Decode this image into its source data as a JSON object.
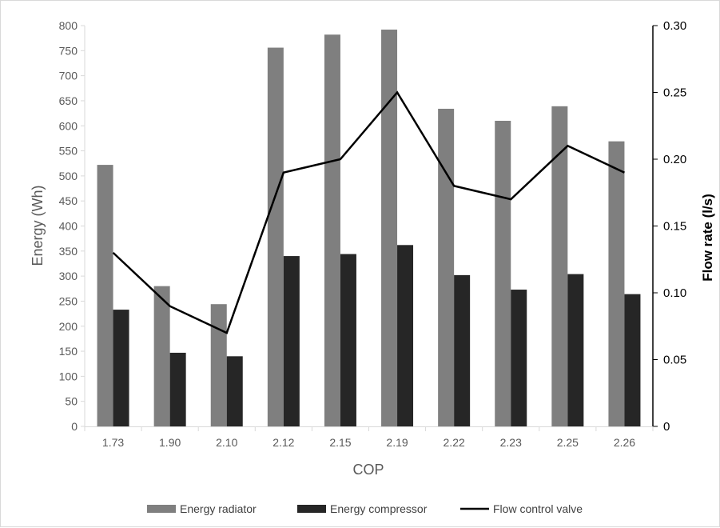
{
  "chart_data": {
    "type": "bar",
    "categories": [
      "1.73",
      "1.90",
      "2.10",
      "2.12",
      "2.15",
      "2.19",
      "2.22",
      "2.23",
      "2.25",
      "2.26"
    ],
    "series": [
      {
        "name": "Energy radiator",
        "type": "bar",
        "axis": "left",
        "color": "#7f7f7f",
        "values": [
          522,
          280,
          244,
          756,
          782,
          792,
          634,
          610,
          639,
          569
        ]
      },
      {
        "name": "Energy compressor",
        "type": "bar",
        "axis": "left",
        "color": "#262626",
        "values": [
          233,
          147,
          140,
          340,
          344,
          362,
          302,
          273,
          304,
          264
        ]
      },
      {
        "name": "Flow control valve",
        "type": "line",
        "axis": "right",
        "color": "#000000",
        "values": [
          0.13,
          0.09,
          0.07,
          0.19,
          0.2,
          0.25,
          0.18,
          0.17,
          0.21,
          0.19
        ]
      }
    ],
    "xlabel": "COP",
    "ylabel": "Energy (Wh)",
    "y2label": "Flow rate (l/s)",
    "ylim": [
      0,
      800
    ],
    "y2lim": [
      0,
      0.3
    ],
    "yticks": [
      "0",
      "50",
      "100",
      "150",
      "200",
      "250",
      "300",
      "350",
      "400",
      "450",
      "500",
      "550",
      "600",
      "650",
      "700",
      "750",
      "800"
    ],
    "y2ticks": [
      "0",
      "0.05",
      "0.10",
      "0.15",
      "0.20",
      "0.25",
      "0.30"
    ],
    "grid": false,
    "legend_position": "bottom"
  }
}
